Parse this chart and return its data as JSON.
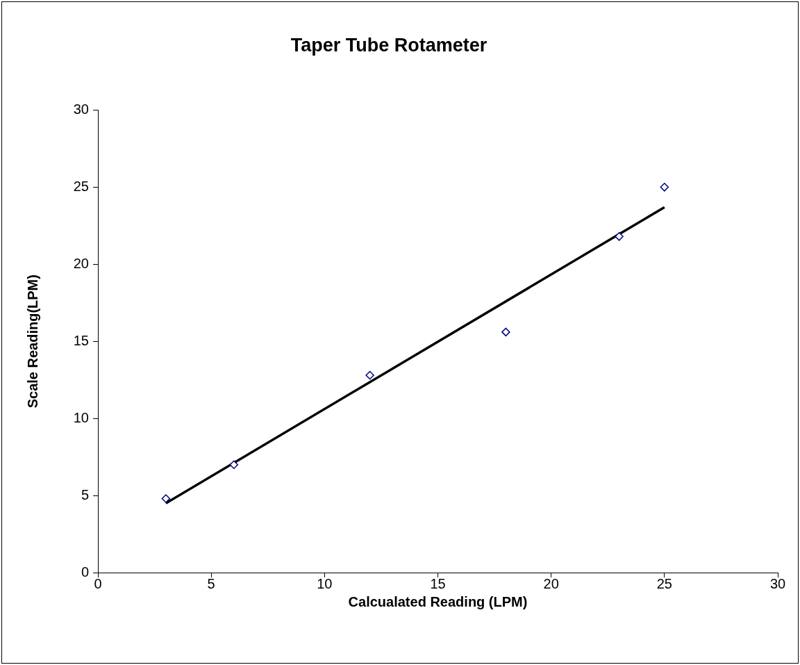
{
  "chart_data": {
    "type": "scatter",
    "title": "Taper Tube Rotameter",
    "xlabel": "Calcualated Reading (LPM)",
    "ylabel": "Scale Reading(LPM)",
    "xlim": [
      0,
      30
    ],
    "ylim": [
      0,
      30
    ],
    "xticks": [
      0,
      5,
      10,
      15,
      20,
      25,
      30
    ],
    "yticks": [
      0,
      5,
      10,
      15,
      20,
      25,
      30
    ],
    "grid": false,
    "legend": false,
    "marker": "diamond",
    "series": [
      {
        "color": "#000080",
        "x": [
          3,
          6,
          12,
          18,
          23,
          25
        ],
        "values": [
          4.8,
          7.0,
          12.8,
          15.6,
          21.8,
          25.0
        ]
      },
      {
        "type": "line",
        "color": "#000000",
        "x": [
          3,
          25
        ],
        "values": [
          4.5,
          23.7
        ],
        "marker": "none",
        "line_style": "solid"
      }
    ]
  }
}
